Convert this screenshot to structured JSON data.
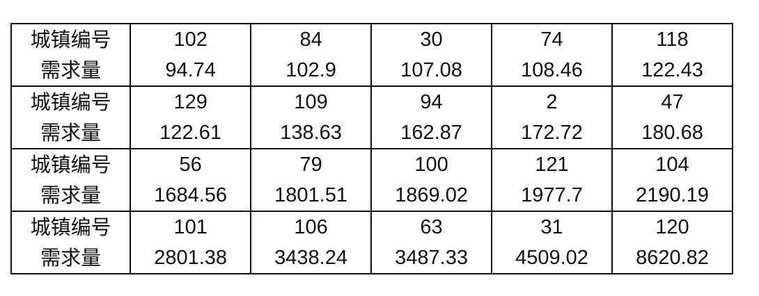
{
  "labels": {
    "town_id": "城镇编号",
    "demand": "需求量"
  },
  "groups": [
    {
      "ids": [
        "102",
        "84",
        "30",
        "74",
        "118"
      ],
      "demands": [
        "94.74",
        "102.9",
        "107.08",
        "108.46",
        "122.43"
      ]
    },
    {
      "ids": [
        "129",
        "109",
        "94",
        "2",
        "47"
      ],
      "demands": [
        "122.61",
        "138.63",
        "162.87",
        "172.72",
        "180.68"
      ]
    },
    {
      "ids": [
        "56",
        "79",
        "100",
        "121",
        "104"
      ],
      "demands": [
        "1684.56",
        "1801.51",
        "1869.02",
        "1977.7",
        "2190.19"
      ]
    },
    {
      "ids": [
        "101",
        "106",
        "63",
        "31",
        "120"
      ],
      "demands": [
        "2801.38",
        "3438.24",
        "3487.33",
        "4509.02",
        "8620.82"
      ]
    }
  ]
}
